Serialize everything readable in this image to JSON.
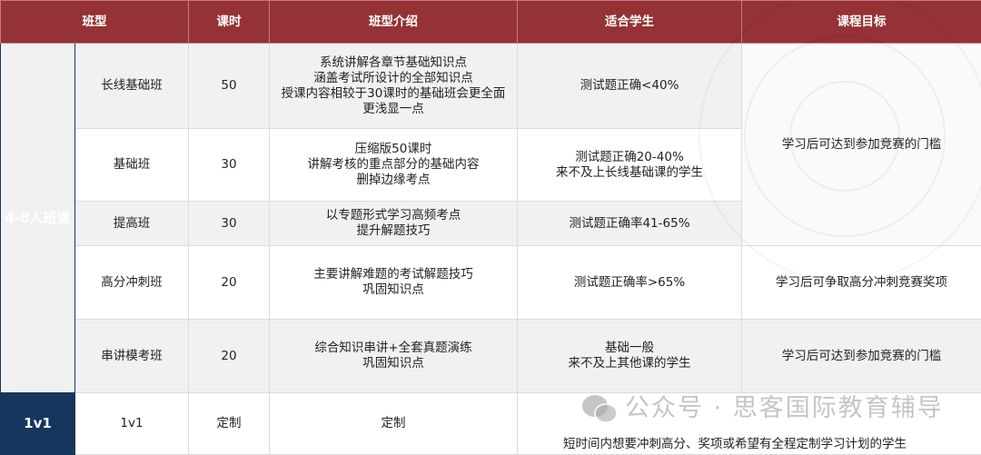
{
  "header": {
    "class_type": "班型",
    "hours": "课时",
    "intro": "班型介绍",
    "suitable": "适合学生",
    "goal": "课程目标"
  },
  "groups": {
    "small": "4-8人班课",
    "one": "1v1"
  },
  "rows": [
    {
      "name": "长线基础班",
      "hours": "50",
      "intro": [
        "系统讲解各章节基础知识点",
        "涵盖考试所设计的全部知识点",
        "授课内容相较于30课时的基础班会更全面",
        "更浅显一点"
      ],
      "suitable": [
        "测试题正确<40%"
      ]
    },
    {
      "name": "基础班",
      "hours": "30",
      "intro": [
        "压缩版50课时",
        "讲解考核的重点部分的基础内容",
        "删掉边缘考点"
      ],
      "suitable": [
        "测试题正确20-40%",
        "来不及上长线基础课的学生"
      ]
    },
    {
      "name": "提高班",
      "hours": "30",
      "intro": [
        "以专题形式学习高频考点",
        "提升解题技巧"
      ],
      "suitable": [
        "测试题正确率41-65%"
      ]
    },
    {
      "name": "高分冲刺班",
      "hours": "20",
      "intro": [
        "主要讲解难题的考试解题技巧",
        "巩固知识点"
      ],
      "suitable": [
        "测试题正确率>65%"
      ]
    },
    {
      "name": "串讲模考班",
      "hours": "20",
      "intro": [
        "综合知识串讲+全套真题演练",
        "巩固知识点"
      ],
      "suitable": [
        "基础一般",
        "来不及上其他课的学生"
      ]
    },
    {
      "name": "1v1",
      "hours": "定制",
      "intro": [
        "定制"
      ],
      "suitable": [
        "短时间内想要冲刺高分、奖项或希望有全程定制学习计划的学生"
      ]
    }
  ],
  "goals": {
    "g1": "学习后可达到参加竞赛的门槛",
    "g2": "学习后可争取高分冲刺竞赛奖项",
    "g3": "学习后可达到参加竞赛的门槛"
  },
  "watermark": "公众号 · 思客国际教育辅导",
  "colors": {
    "header": "#943236",
    "group": "#17365d",
    "row_alt": "#f1f1f1"
  }
}
